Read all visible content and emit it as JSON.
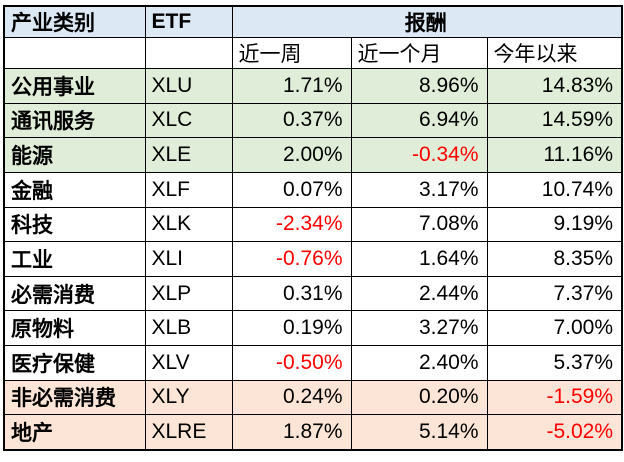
{
  "colors": {
    "header_blue": "#dce9f5",
    "row_green": "#e0edd8",
    "row_peach": "#fce4d6",
    "negative_red": "#ff0000",
    "border_black": "#000000"
  },
  "table": {
    "header": {
      "category": "产业类别",
      "etf": "ETF",
      "return_group": "报酬",
      "sub_columns": [
        "近一周",
        "近一个月",
        "今年以来"
      ]
    },
    "rows": [
      {
        "category": "公用事业",
        "etf": "XLU",
        "week": "1.71%",
        "month": "8.96%",
        "ytd": "14.83%",
        "highlight": "green"
      },
      {
        "category": "通讯服务",
        "etf": "XLC",
        "week": "0.37%",
        "month": "6.94%",
        "ytd": "14.59%",
        "highlight": "green"
      },
      {
        "category": "能源",
        "etf": "XLE",
        "week": "2.00%",
        "month": "-0.34%",
        "ytd": "11.16%",
        "highlight": "green"
      },
      {
        "category": "金融",
        "etf": "XLF",
        "week": "0.07%",
        "month": "3.17%",
        "ytd": "10.74%",
        "highlight": "none"
      },
      {
        "category": "科技",
        "etf": "XLK",
        "week": "-2.34%",
        "month": "7.08%",
        "ytd": "9.19%",
        "highlight": "none"
      },
      {
        "category": "工业",
        "etf": "XLI",
        "week": "-0.76%",
        "month": "1.64%",
        "ytd": "8.35%",
        "highlight": "none"
      },
      {
        "category": "必需消费",
        "etf": "XLP",
        "week": "0.31%",
        "month": "2.44%",
        "ytd": "7.37%",
        "highlight": "none"
      },
      {
        "category": "原物料",
        "etf": "XLB",
        "week": "0.19%",
        "month": "3.27%",
        "ytd": "7.00%",
        "highlight": "none"
      },
      {
        "category": "医疗保健",
        "etf": "XLV",
        "week": "-0.50%",
        "month": "2.40%",
        "ytd": "5.37%",
        "highlight": "none"
      },
      {
        "category": "非必需消费",
        "etf": "XLY",
        "week": "0.24%",
        "month": "0.20%",
        "ytd": "-1.59%",
        "highlight": "peach"
      },
      {
        "category": "地产",
        "etf": "XLRE",
        "week": "1.87%",
        "month": "5.14%",
        "ytd": "-5.02%",
        "highlight": "peach"
      }
    ]
  },
  "chart_data": {
    "type": "table",
    "title": "报酬",
    "columns": [
      "产业类别",
      "ETF",
      "近一周",
      "近一个月",
      "今年以来"
    ],
    "column_groups": [
      {
        "label": "报酬",
        "spans": [
          "近一周",
          "近一个月",
          "今年以来"
        ]
      }
    ],
    "units": "%",
    "rows": [
      [
        "公用事业",
        "XLU",
        1.71,
        8.96,
        14.83
      ],
      [
        "通讯服务",
        "XLC",
        0.37,
        6.94,
        14.59
      ],
      [
        "能源",
        "XLE",
        2.0,
        -0.34,
        11.16
      ],
      [
        "金融",
        "XLF",
        0.07,
        3.17,
        10.74
      ],
      [
        "科技",
        "XLK",
        -2.34,
        7.08,
        9.19
      ],
      [
        "工业",
        "XLI",
        -0.76,
        1.64,
        8.35
      ],
      [
        "必需消费",
        "XLP",
        0.31,
        2.44,
        7.37
      ],
      [
        "原物料",
        "XLB",
        0.19,
        3.27,
        7.0
      ],
      [
        "医疗保健",
        "XLV",
        -0.5,
        2.4,
        5.37
      ],
      [
        "非必需消费",
        "XLY",
        0.24,
        0.2,
        -1.59
      ],
      [
        "地产",
        "XLRE",
        1.87,
        5.14,
        -5.02
      ]
    ]
  }
}
